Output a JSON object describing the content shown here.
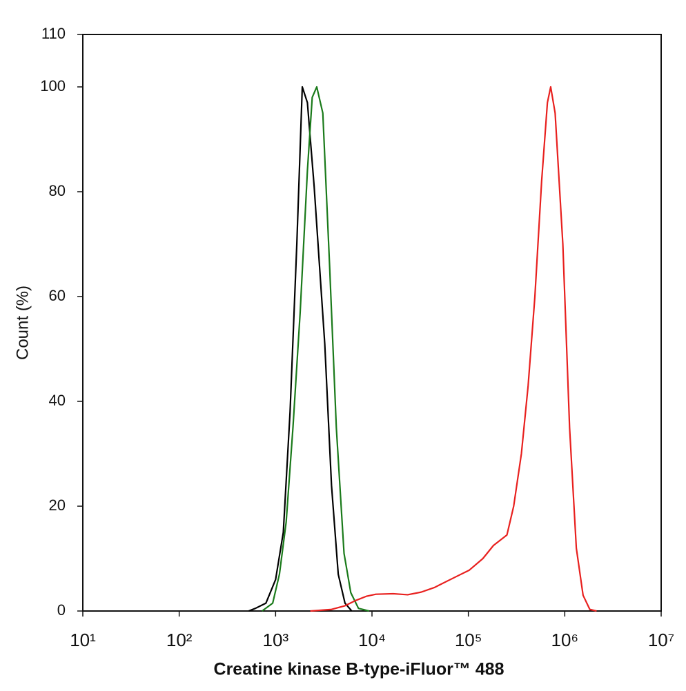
{
  "chart_data": {
    "type": "line",
    "x_label": "Creatine kinase B-type-iFluor™ 488",
    "y_label": "Count (%)",
    "x_scale": "log",
    "xlim": [
      10,
      10000000
    ],
    "xticks": [
      {
        "value": 10,
        "label": "10¹"
      },
      {
        "value": 100,
        "label": "10²"
      },
      {
        "value": 1000,
        "label": "10³"
      },
      {
        "value": 10000,
        "label": "10⁴"
      },
      {
        "value": 100000,
        "label": "10⁵"
      },
      {
        "value": 1000000,
        "label": "10⁶"
      },
      {
        "value": 10000000,
        "label": "10⁷"
      }
    ],
    "ylim": [
      0,
      110
    ],
    "yticks": [
      0,
      20,
      40,
      60,
      80,
      100,
      110
    ],
    "grid": false,
    "series": [
      {
        "color": "#000000",
        "x": [
          525,
          617,
          794,
          1000,
          1202,
          1413,
          1660,
          1892,
          2138,
          2512,
          3236,
          3802,
          4467,
          5248,
          6166
        ],
        "values": [
          0,
          0.5,
          1.5,
          6,
          15,
          38,
          70,
          100,
          97,
          81,
          51,
          24,
          7,
          1.5,
          0
        ]
      },
      {
        "color": "#1a7a1a",
        "x": [
          724,
          933,
          1096,
          1288,
          1514,
          1799,
          2138,
          2399,
          2673,
          3090,
          3631,
          4266,
          5129,
          6026,
          7244,
          9333
        ],
        "values": [
          0,
          1.5,
          7,
          17,
          35,
          57,
          84,
          98,
          100,
          95,
          66,
          35,
          11,
          3.5,
          0.5,
          0
        ]
      },
      {
        "color": "#e8201e",
        "x": [
          2291,
          3802,
          5248,
          6761,
          8710,
          10965,
          16596,
          23442,
          32359,
          44668,
          61660,
          79433,
          102329,
          141254,
          181970,
          251189,
          295121,
          354813,
          416869,
          489779,
          575440,
          660693,
          714500,
          794328,
          954993,
          1122018,
          1318257,
          1548817,
          1819701,
          2137962
        ],
        "values": [
          0,
          0.3,
          1,
          2,
          2.8,
          3.2,
          3.3,
          3.1,
          3.6,
          4.5,
          5.8,
          6.8,
          7.8,
          10,
          12.5,
          14.5,
          20,
          30,
          43,
          60,
          82,
          97,
          100,
          95,
          70,
          35,
          12,
          3,
          0.3,
          0
        ]
      }
    ]
  }
}
